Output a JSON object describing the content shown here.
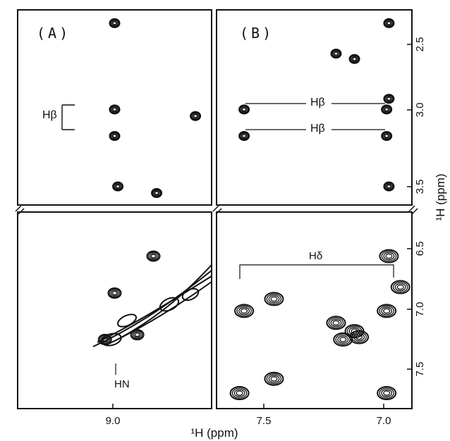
{
  "panels": {
    "a_label": "(A)",
    "b_label": "(B)"
  },
  "annotations": {
    "h_beta": "Hβ",
    "h_beta_b_upper": "Hβ",
    "h_beta_b_lower": "Hβ",
    "h_delta": "Hδ",
    "h_n": "HN"
  },
  "axes": {
    "x_label": "¹H (ppm)",
    "y_label": "¹H (ppm)",
    "x_ticks_a": [
      "9.0"
    ],
    "x_ticks_b": [
      "7.5",
      "7.0"
    ],
    "y_ticks_top": [
      "2.5",
      "3.0",
      "3.5"
    ],
    "y_ticks_bottom": [
      "6.5",
      "7.0",
      "7.5"
    ]
  },
  "chart_data": {
    "type": "scatter",
    "title": "",
    "xlabel": "¹H (ppm)",
    "ylabel": "¹H (ppm)",
    "panel_A": {
      "xlim": [
        9.35,
        8.75
      ],
      "peaks_upper": [
        [
          9.05,
          2.25
        ],
        [
          9.05,
          2.9
        ],
        [
          9.05,
          3.1
        ],
        [
          9.04,
          3.48
        ],
        [
          8.92,
          3.53
        ],
        [
          8.8,
          2.95
        ]
      ],
      "peaks_lower": [
        [
          8.93,
          6.52
        ],
        [
          9.05,
          6.83
        ],
        [
          9.08,
          7.22
        ],
        [
          8.98,
          7.18
        ]
      ]
    },
    "panel_B": {
      "xlim": [
        7.7,
        6.85
      ],
      "peaks_upper": [
        [
          7.18,
          2.48
        ],
        [
          7.1,
          2.52
        ],
        [
          6.95,
          2.25
        ],
        [
          7.58,
          2.9
        ],
        [
          6.96,
          2.9
        ],
        [
          7.58,
          3.1
        ],
        [
          6.96,
          3.1
        ],
        [
          6.95,
          2.82
        ],
        [
          6.95,
          3.48
        ]
      ],
      "peaks_lower": [
        [
          7.58,
          6.98
        ],
        [
          7.45,
          6.88
        ],
        [
          6.96,
          6.98
        ],
        [
          7.18,
          7.08
        ],
        [
          7.1,
          7.15
        ],
        [
          7.15,
          7.22
        ],
        [
          7.08,
          7.2
        ],
        [
          7.6,
          7.67
        ],
        [
          7.45,
          7.55
        ],
        [
          6.96,
          7.67
        ],
        [
          6.9,
          6.78
        ],
        [
          6.95,
          6.52
        ]
      ]
    }
  }
}
